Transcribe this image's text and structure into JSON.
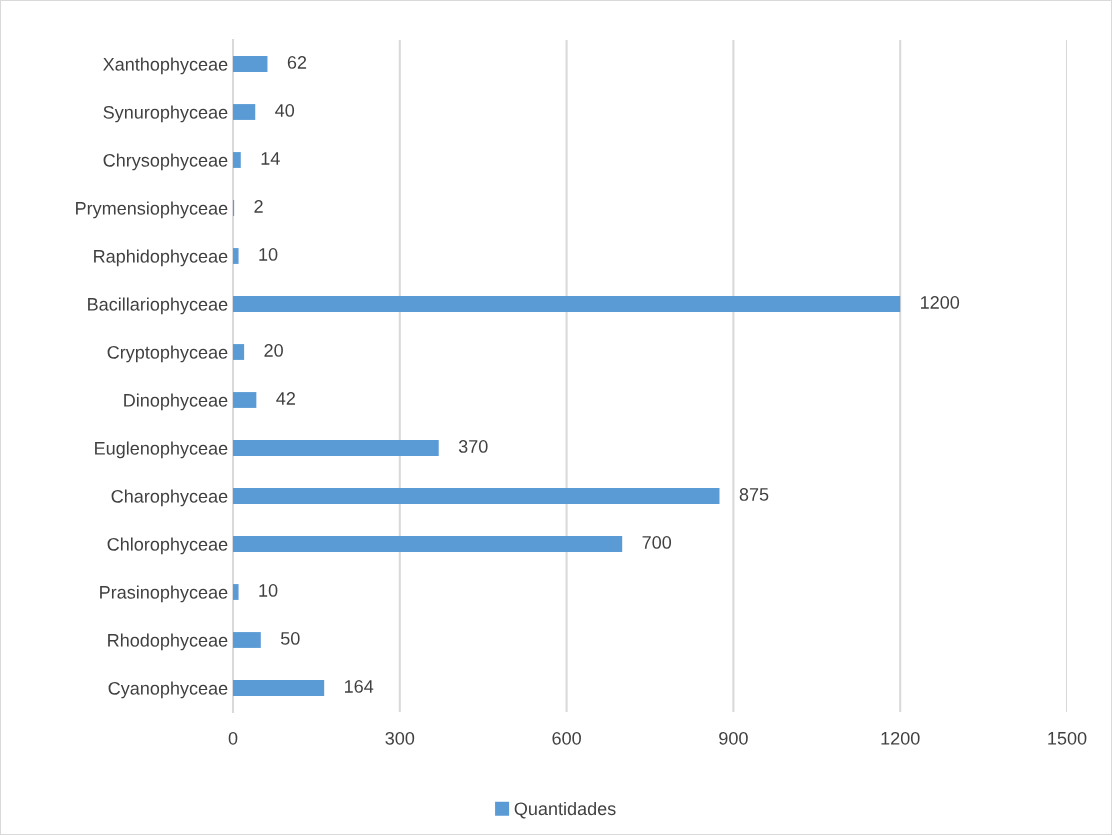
{
  "chart_data": {
    "type": "bar",
    "orientation": "horizontal",
    "categories": [
      "Xanthophyceae",
      "Synurophyceae",
      "Chrysophyceae",
      "Prymensiophyceae",
      "Raphidophyceae",
      "Bacillariophyceae",
      "Cryptophyceae",
      "Dinophyceae",
      "Euglenophyceae",
      "Charophyceae",
      "Chlorophyceae",
      "Prasinophyceae",
      "Rhodophyceae",
      "Cyanophyceae"
    ],
    "series": [
      {
        "name": "Quantidades",
        "color": "#5b9bd5",
        "values": [
          62,
          40,
          14,
          2,
          10,
          1200,
          20,
          42,
          370,
          875,
          700,
          10,
          50,
          164
        ]
      }
    ],
    "xlim": [
      0,
      1500
    ],
    "xticks": [
      0,
      300,
      600,
      900,
      1200,
      1500
    ],
    "grid": "x",
    "legend": "bottom",
    "data_labels": true
  }
}
